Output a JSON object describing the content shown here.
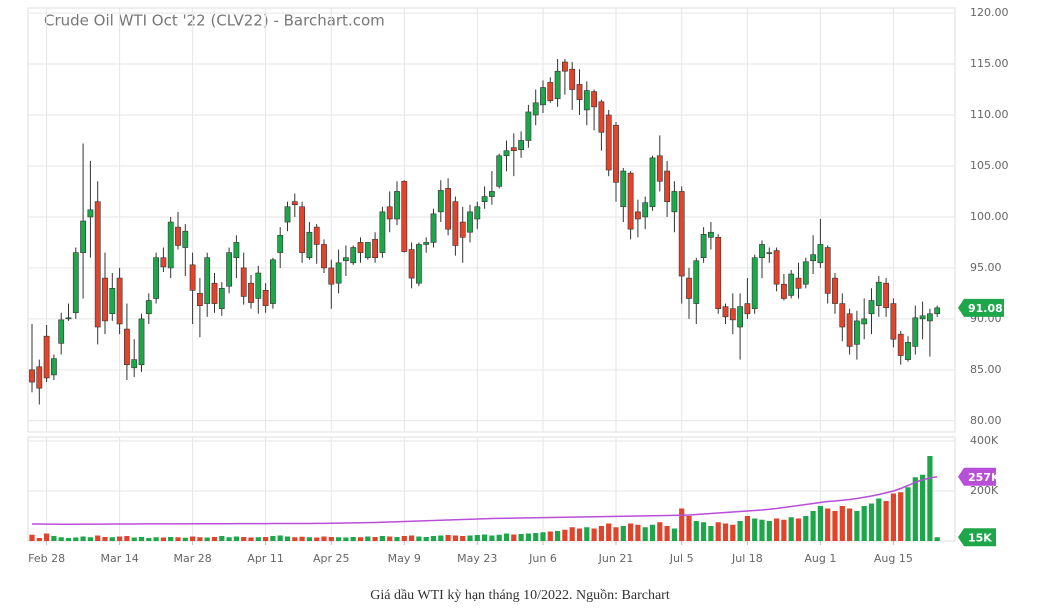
{
  "caption": "Giá dầu WTI kỳ hạn tháng 10/2022. Nguồn: Barchart",
  "chart_data": [
    {
      "type": "candlestick",
      "title": "Crude Oil WTI Oct '22 (CLV22) - Barchart.com",
      "up_color": "#1ea64b",
      "down_color": "#e0442c",
      "grid": true,
      "ylim": [
        78.9,
        120.5
      ],
      "yticks": [
        {
          "value": 80,
          "label": "80.00"
        },
        {
          "value": 85,
          "label": "85.00"
        },
        {
          "value": 90,
          "label": "90.00"
        },
        {
          "value": 95,
          "label": "95.00"
        },
        {
          "value": 100,
          "label": "100.00"
        },
        {
          "value": 105,
          "label": "105.00"
        },
        {
          "value": 110,
          "label": "110.00"
        },
        {
          "value": 115,
          "label": "115.00"
        },
        {
          "value": 120,
          "label": "120.00"
        }
      ],
      "categories": [
        null,
        null,
        "Feb 28",
        null,
        null,
        null,
        null,
        null,
        null,
        null,
        null,
        null,
        "Mar 14",
        null,
        null,
        null,
        null,
        null,
        null,
        null,
        null,
        null,
        "Mar 28",
        null,
        null,
        null,
        null,
        null,
        null,
        null,
        null,
        null,
        "Apr 11",
        null,
        null,
        null,
        null,
        null,
        null,
        null,
        null,
        "Apr 25",
        null,
        null,
        null,
        null,
        null,
        null,
        null,
        null,
        null,
        "May 9",
        null,
        null,
        null,
        null,
        null,
        null,
        null,
        null,
        null,
        "May 23",
        null,
        null,
        null,
        null,
        null,
        null,
        null,
        null,
        "Jun 6",
        null,
        null,
        null,
        null,
        null,
        null,
        null,
        null,
        null,
        "Jun 21",
        null,
        null,
        null,
        null,
        null,
        null,
        null,
        null,
        "Jul 5",
        null,
        null,
        null,
        null,
        null,
        null,
        null,
        null,
        "Jul 18",
        null,
        null,
        null,
        null,
        null,
        null,
        null,
        null,
        null,
        "Aug 1",
        null,
        null,
        null,
        null,
        null,
        null,
        null,
        null,
        null,
        "Aug 15",
        null,
        null,
        null,
        null,
        null,
        null
      ],
      "open": [
        85,
        85.3,
        88.3,
        84.5,
        87.6,
        90,
        90.6,
        96.5,
        100,
        101.5,
        94,
        90.5,
        94,
        89,
        85.2,
        85.5,
        90.5,
        92,
        96,
        95,
        99,
        97,
        95.3,
        92.5,
        91.5,
        93.5,
        91,
        93.2,
        96,
        95,
        93.5,
        92,
        92.8,
        91.5,
        96.5,
        99.5,
        101.5,
        101,
        96,
        99,
        97.3,
        95,
        93.5,
        95.7,
        95.5,
        97.5,
        96,
        97.8,
        96.5,
        101,
        99.8,
        103.5,
        96.8,
        93.5,
        97.3,
        97.5,
        100.5,
        102.8,
        101.5,
        99.5,
        98.5,
        99.8,
        101.5,
        102,
        103,
        106,
        106.8,
        106.6,
        107.5,
        110,
        111,
        113.2,
        111.6,
        115.2,
        114.5,
        113,
        110.5,
        112.3,
        111.3,
        110,
        109,
        101,
        104.3,
        100.5,
        100,
        101,
        106,
        104.5,
        100.5,
        102.5,
        94,
        91.5,
        96,
        98,
        98,
        91.2,
        91,
        89.2,
        91.5,
        91,
        96,
        96.5,
        96.7,
        93.4,
        92.3,
        94,
        93.4,
        95.7,
        95.5,
        97,
        94,
        91.5,
        90.5,
        87.5,
        89.5,
        90.5,
        91.3,
        93.5,
        91.5,
        88.5,
        86,
        87.3,
        90,
        89.8,
        90.5
      ],
      "high": [
        89.5,
        86,
        89.4,
        86.5,
        90.6,
        91.5,
        97,
        107.2,
        105.5,
        103.5,
        96.5,
        94.5,
        95,
        91.5,
        88,
        90.5,
        92.5,
        96.5,
        97,
        100,
        100.5,
        99.3,
        96.5,
        94,
        96.5,
        94.5,
        93.6,
        97,
        98.2,
        96.5,
        94.3,
        95.2,
        93.5,
        96,
        99,
        101.5,
        102.3,
        101.5,
        99.5,
        99.3,
        97.8,
        95.8,
        96.8,
        97.2,
        97.2,
        98,
        97.5,
        98.5,
        101,
        102.5,
        103.5,
        103.6,
        97.5,
        97.5,
        98,
        100.8,
        103.6,
        103.8,
        102,
        101,
        101.2,
        101.5,
        103,
        104.5,
        106.2,
        107.5,
        108.2,
        108.4,
        111,
        112.5,
        113.4,
        113.7,
        115.5,
        115.5,
        115.2,
        114.5,
        113.3,
        112.5,
        111.5,
        110.5,
        109.3,
        104.8,
        104.5,
        101.7,
        102,
        106,
        108,
        105.5,
        103.5,
        103,
        95,
        96,
        99,
        99.5,
        98.3,
        91.5,
        92.5,
        92.5,
        94,
        96.3,
        97.7,
        97,
        97,
        94.4,
        94.8,
        95.5,
        96,
        98.2,
        99.8,
        97.2,
        94.5,
        92.5,
        91,
        90.8,
        92,
        93,
        94.2,
        94,
        92,
        88.8,
        88.3,
        91.3,
        91.7,
        91,
        91.3
      ],
      "low": [
        82.8,
        81.6,
        83.8,
        84,
        86.5,
        89.8,
        90,
        92,
        96,
        87.5,
        88.5,
        89.8,
        88.5,
        84,
        84.3,
        84.8,
        89.5,
        91.5,
        94.6,
        94,
        96.8,
        94.2,
        89.5,
        88.2,
        90.2,
        90.6,
        90.3,
        92.5,
        94,
        91.4,
        91,
        90.5,
        90.6,
        91,
        95,
        98.6,
        100,
        95.5,
        95.8,
        95.4,
        94.5,
        91,
        92.5,
        94.2,
        95.3,
        95.5,
        95.8,
        95.5,
        96,
        98.5,
        99.2,
        96.5,
        93,
        93.2,
        96.5,
        97,
        99.5,
        98.2,
        96.2,
        95.5,
        97.5,
        98.8,
        100.8,
        101.2,
        102.8,
        104.5,
        104,
        105.8,
        106.8,
        109,
        110.2,
        111.2,
        110.8,
        112,
        110.5,
        110,
        109,
        108.5,
        106.5,
        104,
        101.5,
        99.5,
        97.8,
        98,
        98.8,
        100.6,
        102.5,
        100,
        98.5,
        91.5,
        90,
        89.5,
        95.5,
        96.8,
        90.5,
        89.5,
        88.5,
        86,
        90,
        90.5,
        94,
        95.5,
        92.7,
        91.8,
        92,
        92,
        93,
        94.4,
        95,
        91.5,
        90.5,
        87.8,
        86.5,
        86,
        88,
        88.5,
        90.2,
        90.2,
        87.2,
        85.5,
        85.8,
        86.5,
        88,
        86.3,
        90.2
      ],
      "close": [
        83.8,
        83.2,
        84.2,
        86.1,
        89.9,
        90.1,
        96.5,
        99.6,
        100.7,
        89.2,
        89.8,
        93,
        89.5,
        85.5,
        86,
        90,
        91.8,
        96,
        95.1,
        99.5,
        97.2,
        98.6,
        92.8,
        91.3,
        96,
        91.5,
        93,
        96.5,
        97.5,
        92.2,
        91.6,
        94.5,
        91.3,
        95.8,
        98.2,
        101,
        101.2,
        96.5,
        98.5,
        97.3,
        95,
        93.4,
        95.5,
        96,
        97,
        96.5,
        97.5,
        96,
        100.5,
        99.8,
        102.5,
        96.6,
        94,
        97.3,
        97.5,
        100.3,
        102.6,
        98.8,
        97.2,
        98,
        100.5,
        101,
        102,
        102.5,
        106,
        106.5,
        106.5,
        107.5,
        110.3,
        111.2,
        112.7,
        111.4,
        114.3,
        114.3,
        112.5,
        111.5,
        112.4,
        110.8,
        108.3,
        104.6,
        103.4,
        104.5,
        98.8,
        99.8,
        101.4,
        105.8,
        103.5,
        101.5,
        102.5,
        94.2,
        92,
        95.7,
        98.3,
        98.5,
        91,
        90.2,
        89.9,
        91.2,
        90.5,
        96,
        97.3,
        96.5,
        93.4,
        92,
        94.4,
        93,
        95.6,
        96.3,
        97.3,
        92.5,
        91.5,
        89.2,
        87.3,
        89.8,
        90,
        91.8,
        93.6,
        91.1,
        88,
        86.4,
        87.7,
        90.1,
        90.3,
        90.5,
        91.08
      ]
    },
    {
      "type": "volume",
      "ylim": [
        0,
        416000
      ],
      "yticks": [
        {
          "value": 200000,
          "label": "200K"
        },
        {
          "value": 400000,
          "label": "400K"
        }
      ],
      "series": [
        {
          "type": "bar",
          "values": [
            25000,
            12000,
            30000,
            20000,
            15000,
            12000,
            14000,
            18000,
            15000,
            22000,
            16000,
            15000,
            18000,
            20000,
            14000,
            16000,
            12000,
            15000,
            14000,
            16000,
            15000,
            13000,
            18000,
            15000,
            14000,
            16000,
            20000,
            15000,
            18000,
            16000,
            14000,
            15000,
            16000,
            20000,
            22000,
            18000,
            15000,
            17000,
            15000,
            14000,
            18000,
            16000,
            15000,
            14000,
            16000,
            15000,
            18000,
            16000,
            20000,
            18000,
            16000,
            20000,
            22000,
            18000,
            16000,
            20000,
            22000,
            24000,
            22000,
            20000,
            22000,
            24000,
            26000,
            22000,
            25000,
            30000,
            26000,
            28000,
            30000,
            32000,
            35000,
            38000,
            40000,
            45000,
            55000,
            50000,
            55000,
            50000,
            60000,
            70000,
            55000,
            60000,
            70000,
            65000,
            55000,
            65000,
            75000,
            60000,
            50000,
            130000,
            100000,
            80000,
            75000,
            60000,
            75000,
            70000,
            65000,
            80000,
            100000,
            90000,
            85000,
            80000,
            90000,
            85000,
            95000,
            90000,
            100000,
            120000,
            140000,
            130000,
            120000,
            140000,
            130000,
            120000,
            140000,
            150000,
            170000,
            160000,
            190000,
            195000,
            215000,
            255000,
            265000,
            340000,
            15000
          ],
          "value_labels": [
            null,
            null,
            null,
            null,
            null,
            null,
            null,
            null,
            null,
            null,
            null,
            null,
            null,
            null,
            null,
            null,
            null,
            null,
            null,
            null,
            null,
            null,
            null,
            null,
            null,
            null,
            null,
            null,
            null,
            null,
            null,
            null,
            null,
            null,
            null,
            null,
            null,
            null,
            null,
            null,
            null,
            null,
            null,
            null,
            null,
            null,
            null,
            null,
            null,
            null,
            null,
            null,
            null,
            null,
            null,
            null,
            null,
            null,
            null,
            null,
            null,
            null,
            null,
            null,
            null,
            null,
            null,
            null,
            null,
            null,
            null,
            null,
            null,
            null,
            null,
            null,
            null,
            null,
            null,
            null,
            null,
            null,
            null,
            null,
            null,
            null,
            null,
            null,
            null,
            null,
            null,
            null,
            null,
            null,
            null,
            null,
            null,
            null,
            null,
            null,
            null,
            null,
            null,
            null,
            null,
            null,
            null,
            null,
            null,
            null,
            null,
            null,
            null,
            null,
            null,
            null,
            null,
            null,
            null,
            null,
            null,
            null,
            null,
            null,
            "15K"
          ]
        },
        {
          "type": "line",
          "color": "#b84fd8",
          "values": [
            68000,
            68000,
            67500,
            67500,
            67000,
            67000,
            67000,
            67500,
            67500,
            67500,
            67500,
            68000,
            68000,
            68000,
            68000,
            68500,
            68500,
            68500,
            68500,
            68500,
            68500,
            68500,
            69000,
            69000,
            69000,
            69000,
            69000,
            69000,
            69500,
            69500,
            69500,
            69500,
            69500,
            70000,
            70000,
            70000,
            70000,
            70000,
            70000,
            70500,
            70500,
            71000,
            71500,
            72000,
            72500,
            73000,
            73500,
            74000,
            75000,
            76000,
            77000,
            78000,
            79000,
            80000,
            81000,
            82000,
            83000,
            84000,
            85000,
            86000,
            87000,
            88000,
            89000,
            90000,
            90500,
            91000,
            91500,
            92000,
            92500,
            93000,
            93500,
            94000,
            94500,
            95000,
            95500,
            96000,
            96500,
            97000,
            97500,
            98000,
            98500,
            99000,
            99500,
            100000,
            100500,
            101000,
            101500,
            102000,
            102500,
            103000,
            104000,
            106000,
            108000,
            110000,
            112000,
            114000,
            116000,
            118000,
            120000,
            122000,
            124000,
            127000,
            130000,
            134000,
            138000,
            142000,
            146000,
            150000,
            154000,
            158000,
            160000,
            163000,
            166000,
            170000,
            175000,
            180000,
            186000,
            193000,
            200000,
            210000,
            222000,
            235000,
            245000,
            252000,
            257000
          ],
          "value_labels": [
            null,
            null,
            null,
            null,
            null,
            null,
            null,
            null,
            null,
            null,
            null,
            null,
            null,
            null,
            null,
            null,
            null,
            null,
            null,
            null,
            null,
            null,
            null,
            null,
            null,
            null,
            null,
            null,
            null,
            null,
            null,
            null,
            null,
            null,
            null,
            null,
            null,
            null,
            null,
            null,
            null,
            null,
            null,
            null,
            null,
            null,
            null,
            null,
            null,
            null,
            null,
            null,
            null,
            null,
            null,
            null,
            null,
            null,
            null,
            null,
            null,
            null,
            null,
            null,
            null,
            null,
            null,
            null,
            null,
            null,
            null,
            null,
            null,
            null,
            null,
            null,
            null,
            null,
            null,
            null,
            null,
            null,
            null,
            null,
            null,
            null,
            null,
            null,
            null,
            null,
            null,
            null,
            null,
            null,
            null,
            null,
            null,
            null,
            null,
            null,
            null,
            null,
            null,
            null,
            null,
            null,
            null,
            null,
            null,
            null,
            null,
            null,
            null,
            null,
            null,
            null,
            null,
            null,
            null,
            null,
            null,
            null,
            null,
            null,
            "257K"
          ]
        }
      ]
    }
  ]
}
